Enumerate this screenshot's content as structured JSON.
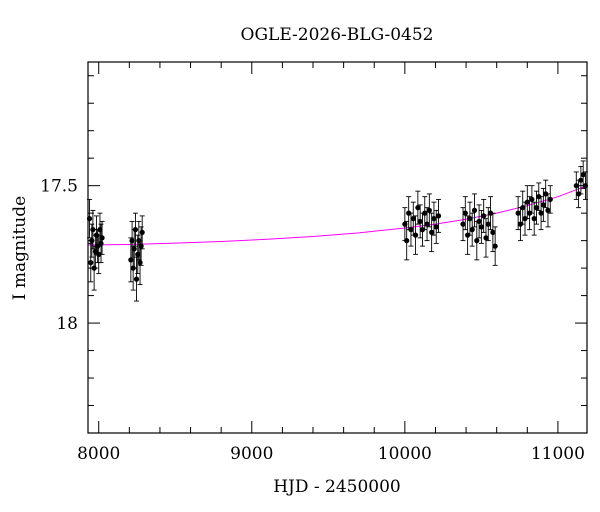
{
  "chart_data": {
    "type": "scatter",
    "title": "OGLE-2026-BLG-0452",
    "xlabel": "HJD - 2450000",
    "ylabel": "I magnitude",
    "xlim": [
      7930,
      11190
    ],
    "ylim": [
      18.4,
      17.05
    ],
    "y_inverted": true,
    "grid": false,
    "x_ticks": [
      {
        "value": 8000,
        "label": "8000"
      },
      {
        "value": 9000,
        "label": "9000"
      },
      {
        "value": 10000,
        "label": "10000"
      },
      {
        "value": 11000,
        "label": "11000"
      }
    ],
    "y_ticks": [
      {
        "value": 17.5,
        "label": "17.5"
      },
      {
        "value": 18,
        "label": "18"
      }
    ],
    "series": [
      {
        "kind": "observations",
        "color": "#000000",
        "x": [
          7940,
          7948,
          7955,
          7962,
          7970,
          7978,
          7985,
          7993,
          8000,
          8008,
          8015,
          8022,
          8210,
          8218,
          8225,
          8232,
          8240,
          8247,
          8255,
          8262,
          8270,
          8277,
          8284,
          10000,
          10012,
          10025,
          10040,
          10055,
          10070,
          10085,
          10100,
          10115,
          10130,
          10145,
          10160,
          10175,
          10190,
          10205,
          10220,
          10380,
          10395,
          10410,
          10425,
          10440,
          10455,
          10470,
          10485,
          10500,
          10515,
          10530,
          10545,
          10560,
          10575,
          10590,
          10740,
          10755,
          10770,
          10785,
          10800,
          10815,
          10830,
          10845,
          10860,
          10875,
          10890,
          10905,
          10920,
          10935,
          10950,
          11120,
          11135,
          11150,
          11165,
          11180
        ],
        "y": [
          17.62,
          17.78,
          17.7,
          17.66,
          17.8,
          17.74,
          17.68,
          17.72,
          17.75,
          17.66,
          17.71,
          17.69,
          17.77,
          17.7,
          17.8,
          17.73,
          17.66,
          17.84,
          17.75,
          17.7,
          17.78,
          17.72,
          17.67,
          17.64,
          17.7,
          17.6,
          17.66,
          17.62,
          17.68,
          17.58,
          17.63,
          17.66,
          17.6,
          17.64,
          17.59,
          17.67,
          17.62,
          17.65,
          17.61,
          17.64,
          17.6,
          17.68,
          17.62,
          17.66,
          17.59,
          17.7,
          17.63,
          17.65,
          17.61,
          17.69,
          17.64,
          17.6,
          17.67,
          17.72,
          17.6,
          17.64,
          17.58,
          17.62,
          17.56,
          17.6,
          17.55,
          17.62,
          17.58,
          17.54,
          17.6,
          17.57,
          17.53,
          17.59,
          17.55,
          17.5,
          17.53,
          17.48,
          17.46,
          17.5
        ],
        "yerr": [
          0.07,
          0.07,
          0.06,
          0.07,
          0.08,
          0.06,
          0.07,
          0.06,
          0.07,
          0.06,
          0.07,
          0.06,
          0.08,
          0.07,
          0.08,
          0.07,
          0.06,
          0.08,
          0.07,
          0.07,
          0.08,
          0.07,
          0.06,
          0.06,
          0.07,
          0.06,
          0.06,
          0.06,
          0.07,
          0.06,
          0.06,
          0.06,
          0.06,
          0.06,
          0.06,
          0.07,
          0.06,
          0.06,
          0.06,
          0.06,
          0.06,
          0.07,
          0.06,
          0.06,
          0.06,
          0.07,
          0.06,
          0.06,
          0.06,
          0.07,
          0.06,
          0.06,
          0.07,
          0.07,
          0.06,
          0.06,
          0.06,
          0.06,
          0.06,
          0.06,
          0.05,
          0.06,
          0.06,
          0.05,
          0.06,
          0.06,
          0.05,
          0.06,
          0.05,
          0.05,
          0.05,
          0.05,
          0.05,
          0.05
        ]
      },
      {
        "kind": "model",
        "color": "#ff00ff",
        "x": [
          7930,
          8200,
          8500,
          8800,
          9100,
          9400,
          9700,
          10000,
          10200,
          10400,
          10600,
          10800,
          11000,
          11190
        ],
        "y": [
          17.716,
          17.714,
          17.709,
          17.703,
          17.695,
          17.685,
          17.672,
          17.654,
          17.64,
          17.622,
          17.6,
          17.573,
          17.54,
          17.5
        ]
      }
    ]
  }
}
